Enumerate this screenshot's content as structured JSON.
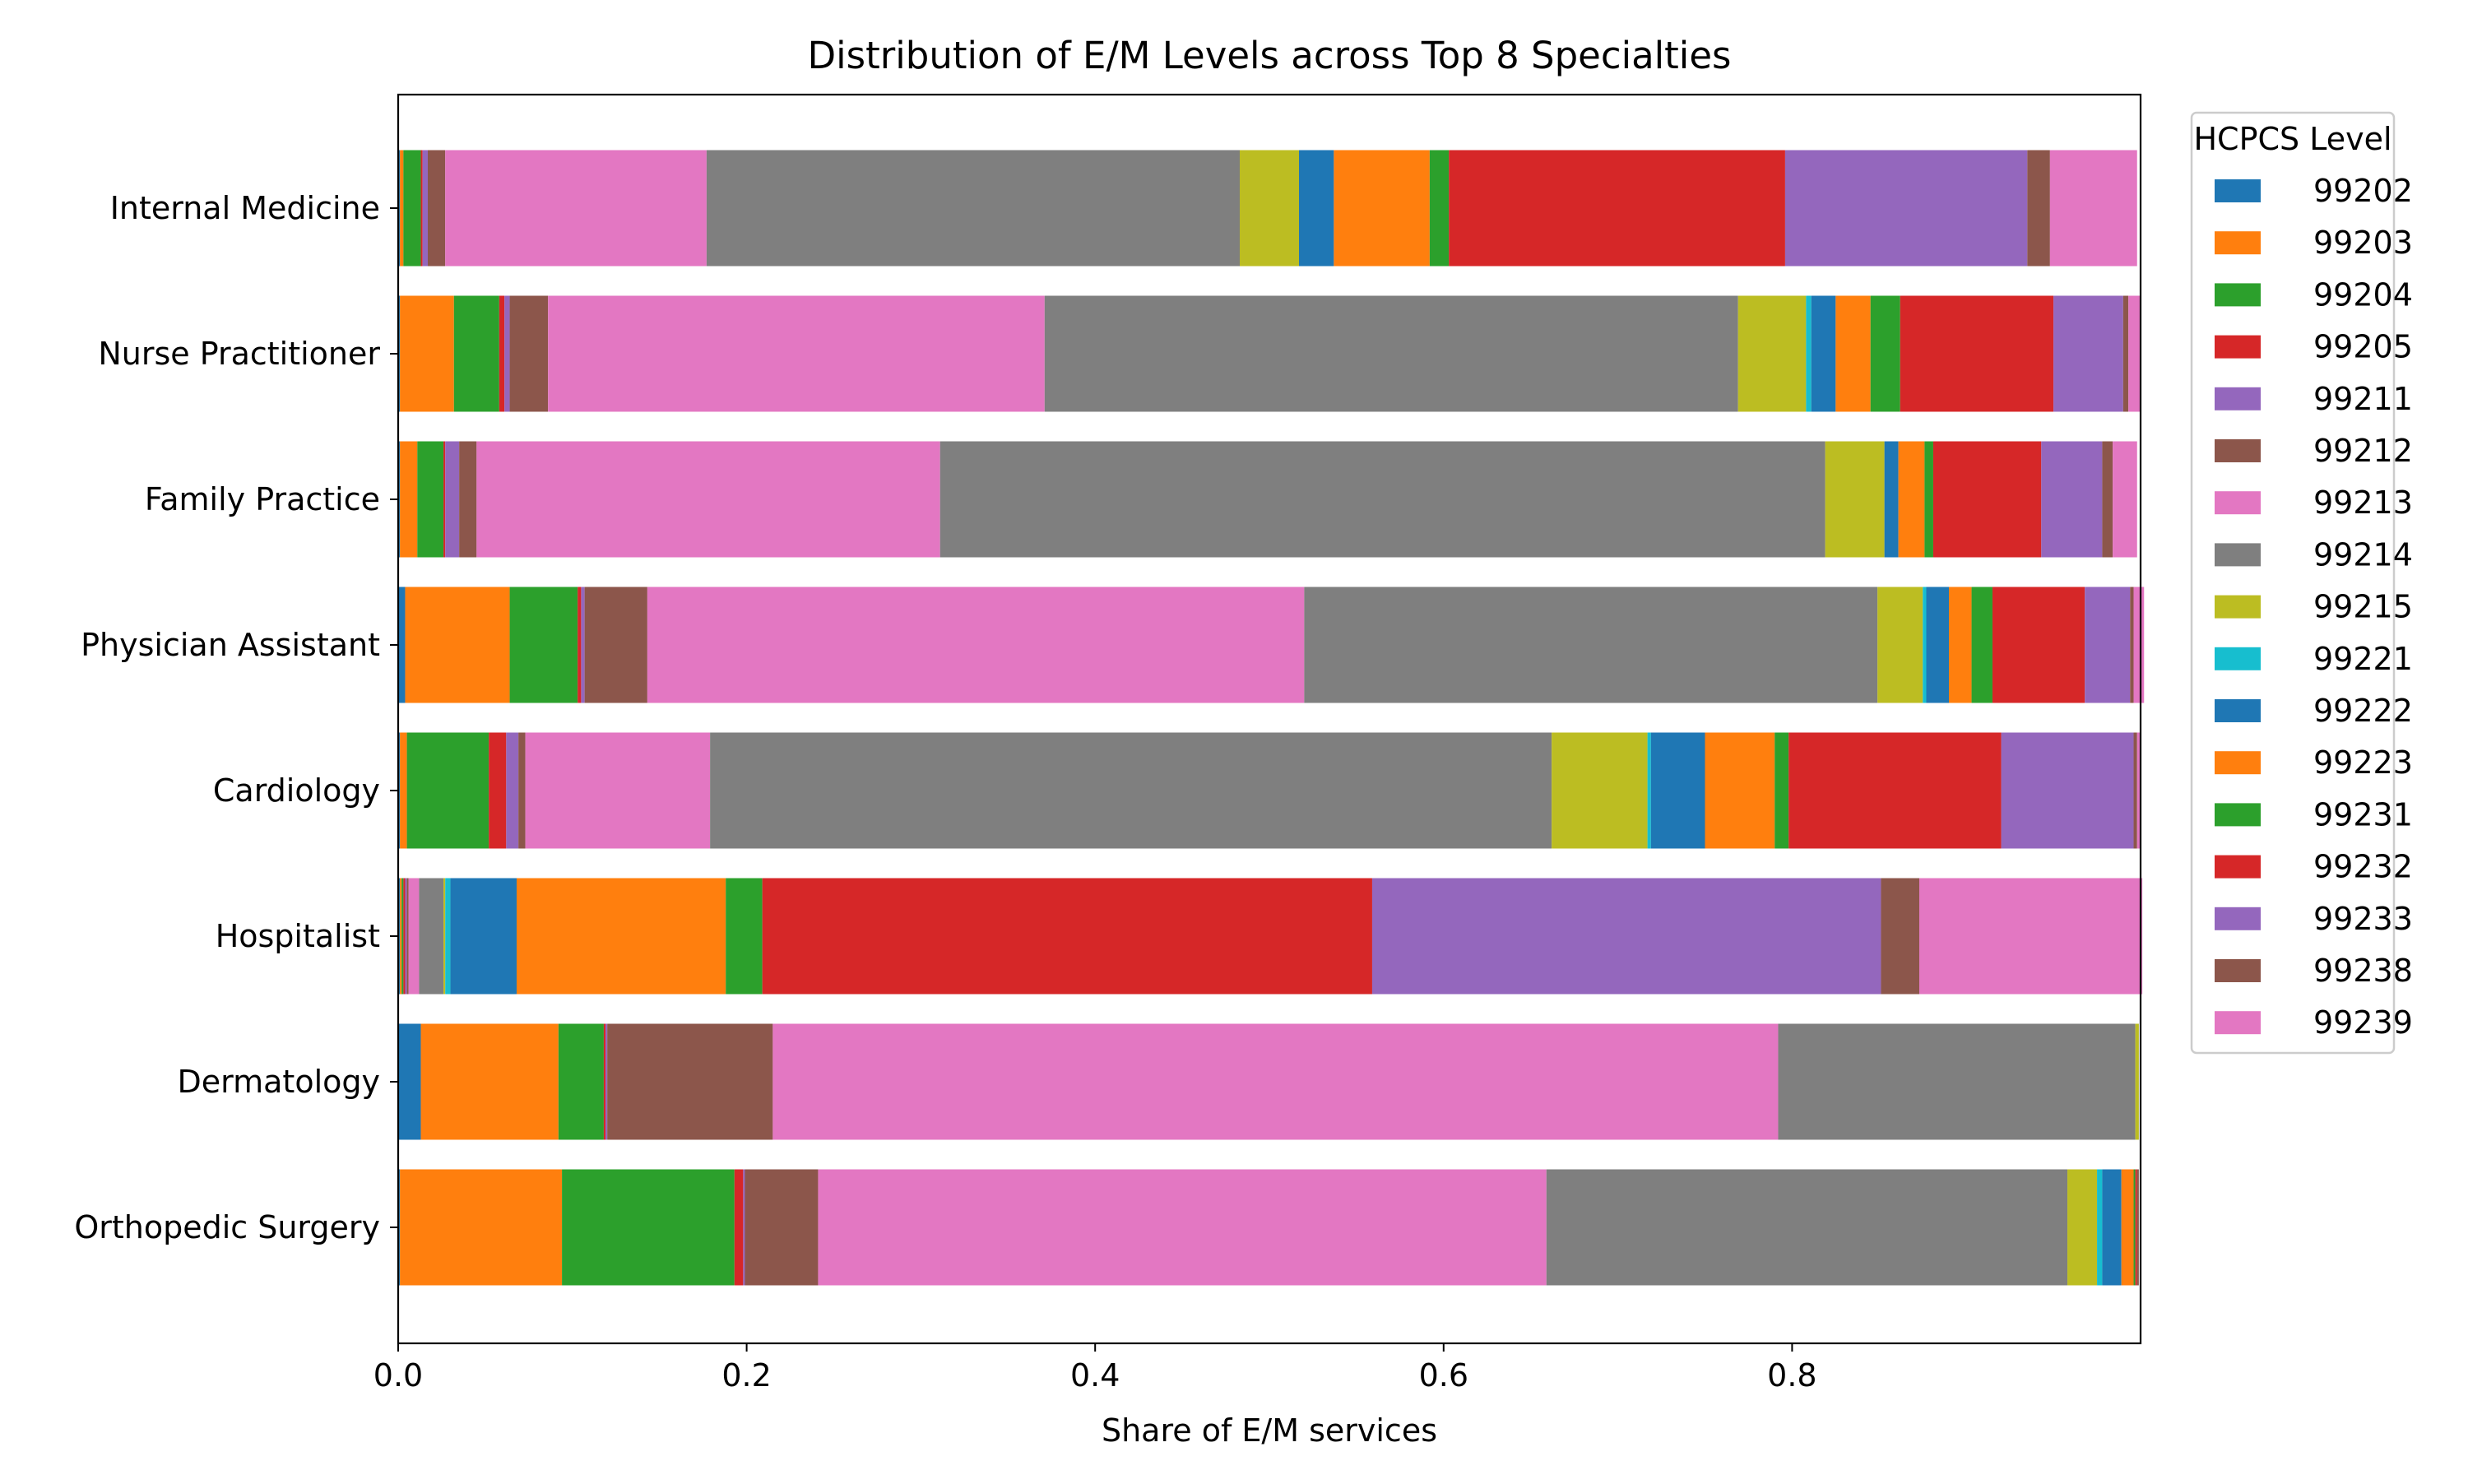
{
  "chart_data": {
    "type": "bar",
    "orientation": "horizontal",
    "stacked": true,
    "title": "Distribution of E/M Levels across Top 8 Specialties",
    "xlabel": "Share of E/M services",
    "ylabel": "",
    "xlim": [
      0,
      1
    ],
    "x_ticks": [
      "0.0",
      "0.2",
      "0.4",
      "0.6",
      "0.8"
    ],
    "grid": false,
    "legend": {
      "title": "HCPCS Level",
      "placement": "right-outside-top"
    },
    "categories": [
      "Internal Medicine",
      "Nurse Practitioner",
      "Family Practice",
      "Physician Assistant",
      "Cardiology",
      "Hospitalist",
      "Dermatology",
      "Orthopedic Surgery"
    ],
    "series": [
      {
        "name": "99202",
        "color": "#1f77b4",
        "values": [
          0.001,
          0.001,
          0.001,
          0.004,
          0.001,
          0.001,
          0.013,
          0.001
        ]
      },
      {
        "name": "99203",
        "color": "#ff7f0e",
        "values": [
          0.002,
          0.031,
          0.01,
          0.06,
          0.004,
          0.001,
          0.079,
          0.093
        ]
      },
      {
        "name": "99204",
        "color": "#2ca02c",
        "values": [
          0.01,
          0.026,
          0.015,
          0.039,
          0.047,
          0.001,
          0.026,
          0.099
        ]
      },
      {
        "name": "99205",
        "color": "#d62728",
        "values": [
          0.001,
          0.003,
          0.001,
          0.002,
          0.01,
          0.001,
          0.001,
          0.005
        ]
      },
      {
        "name": "99211",
        "color": "#9467bd",
        "values": [
          0.003,
          0.003,
          0.008,
          0.002,
          0.007,
          0.001,
          0.001,
          0.001
        ]
      },
      {
        "name": "99212",
        "color": "#8c564b",
        "values": [
          0.01,
          0.022,
          0.01,
          0.036,
          0.004,
          0.001,
          0.095,
          0.042
        ]
      },
      {
        "name": "99213",
        "color": "#e377c2",
        "values": [
          0.15,
          0.285,
          0.266,
          0.377,
          0.106,
          0.006,
          0.577,
          0.418
        ]
      },
      {
        "name": "99214",
        "color": "#7f7f7f",
        "values": [
          0.306,
          0.398,
          0.508,
          0.329,
          0.483,
          0.014,
          0.205,
          0.299
        ]
      },
      {
        "name": "99215",
        "color": "#bcbd22",
        "values": [
          0.034,
          0.039,
          0.034,
          0.026,
          0.055,
          0.001,
          0.002,
          0.017
        ]
      },
      {
        "name": "99221",
        "color": "#17becf",
        "values": [
          0.0,
          0.003,
          0.0,
          0.002,
          0.002,
          0.003,
          0.0,
          0.003
        ]
      },
      {
        "name": "99222",
        "color": "#1f77b4",
        "values": [
          0.02,
          0.014,
          0.008,
          0.013,
          0.031,
          0.038,
          0.0,
          0.011
        ]
      },
      {
        "name": "99223",
        "color": "#ff7f0e",
        "values": [
          0.055,
          0.02,
          0.015,
          0.013,
          0.04,
          0.12,
          0.0,
          0.007
        ]
      },
      {
        "name": "99231",
        "color": "#2ca02c",
        "values": [
          0.011,
          0.017,
          0.005,
          0.012,
          0.008,
          0.021,
          0.0,
          0.001
        ]
      },
      {
        "name": "99232",
        "color": "#d62728",
        "values": [
          0.193,
          0.088,
          0.062,
          0.053,
          0.122,
          0.35,
          0.0,
          0.001
        ]
      },
      {
        "name": "99233",
        "color": "#9467bd",
        "values": [
          0.139,
          0.04,
          0.035,
          0.026,
          0.076,
          0.292,
          0.0,
          0.0
        ]
      },
      {
        "name": "99238",
        "color": "#8c564b",
        "values": [
          0.013,
          0.003,
          0.006,
          0.002,
          0.002,
          0.022,
          0.0,
          0.001
        ]
      },
      {
        "name": "99239",
        "color": "#e377c2",
        "values": [
          0.05,
          0.007,
          0.014,
          0.006,
          0.002,
          0.128,
          0.0,
          0.0
        ]
      }
    ]
  }
}
